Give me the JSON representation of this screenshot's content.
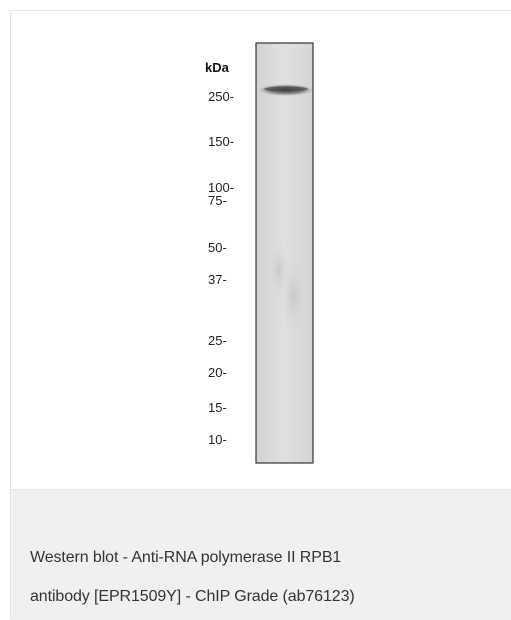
{
  "figure": {
    "unit_label": "kDa",
    "markers": [
      {
        "label": "250-",
        "kda": 250
      },
      {
        "label": "150-",
        "kda": 150
      },
      {
        "label": "100-",
        "kda": 100
      },
      {
        "label": "75-",
        "kda": 75
      },
      {
        "label": "50-",
        "kda": 50
      },
      {
        "label": "37-",
        "kda": 37
      },
      {
        "label": "25-",
        "kda": 25
      },
      {
        "label": "20-",
        "kda": 20
      },
      {
        "label": "15-",
        "kda": 15
      },
      {
        "label": "10-",
        "kda": 10
      }
    ],
    "colors": {
      "lane_background": "#dcdcdc",
      "lane_border": "#333333",
      "band": "#5a5a5a"
    }
  },
  "caption": {
    "line1": "Western blot - Anti-RNA polymerase II RPB1",
    "line2": "antibody [EPR1509Y] - ChIP Grade (ab76123)"
  }
}
